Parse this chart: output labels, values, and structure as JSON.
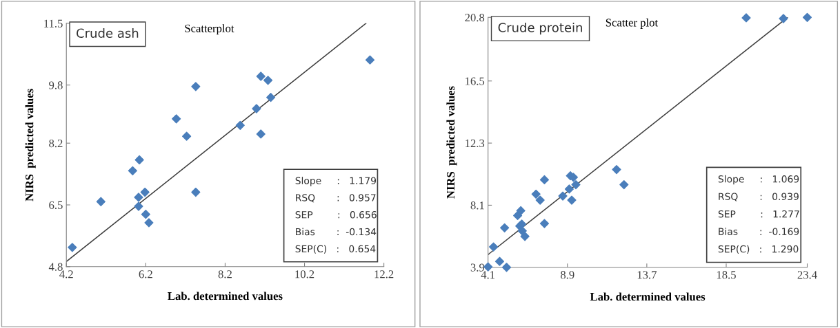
{
  "chart_data": [
    {
      "type": "scatter",
      "title": "Scatterplot",
      "xlabel": "Lab. determined values",
      "ylabel": "NIRS  predicted values",
      "annotations": [
        "Crude ash",
        "Slope     :   1.179",
        "RSQ       :   0.957",
        "SEP        :   0.656",
        "Bias       :  -0.134",
        "SEP(C)   :   0.654"
      ],
      "xlim": [
        4.2,
        12.2
      ],
      "xticks": [
        4.2,
        6.2,
        8.2,
        10.2,
        12.2
      ],
      "ylim": [
        4.8,
        11.5
      ],
      "yticks": [
        4.8,
        6.5,
        8.2,
        9.8,
        11.5
      ],
      "grid": false,
      "series": [
        {
          "marker": "diamond",
          "color": "#4a7ebb",
          "x": [
            4.35,
            5.07,
            5.87,
            6.04,
            6.02,
            6.18,
            6.02,
            6.2,
            6.28,
            6.97,
            7.23,
            7.46,
            7.46,
            8.58,
            8.99,
            9.1,
            9.1,
            9.28,
            9.35,
            11.85
          ],
          "values": [
            5.33,
            6.59,
            7.44,
            7.74,
            6.71,
            6.85,
            6.46,
            6.24,
            6.01,
            8.87,
            8.39,
            9.76,
            6.85,
            8.69,
            9.15,
            8.45,
            10.04,
            9.93,
            9.46,
            10.49
          ]
        },
        {
          "type": "line",
          "color": "#404040",
          "x": [
            4.2,
            11.75
          ],
          "values": [
            4.94,
            11.5
          ]
        }
      ]
    },
    {
      "type": "scatter",
      "title": "Scatter plot",
      "xlabel": "Lab. determined values",
      "ylabel": "NIRS  predicted values",
      "annotations": [
        "Crude protein",
        "Slope     :   1.069",
        "RSQ       :   0.939",
        "SEP        :   1.277",
        "Bias       :  -0.169",
        "SEP(C)   :   1.290"
      ],
      "xlim": [
        4.1,
        23.4
      ],
      "xticks": [
        4.1,
        8.9,
        13.7,
        18.5,
        23.4
      ],
      "ylim": [
        3.9,
        20.8
      ],
      "yticks": [
        3.9,
        8.1,
        12.3,
        16.5,
        20.8
      ],
      "grid": false,
      "series": [
        {
          "marker": "diamond",
          "color": "#4a7ebb",
          "x": [
            4.1,
            4.43,
            4.8,
            5.22,
            5.1,
            5.89,
            6.08,
            6.02,
            6.14,
            6.17,
            6.33,
            7.0,
            7.25,
            7.51,
            7.51,
            8.62,
            9.01,
            9.16,
            9.08,
            9.26,
            9.41,
            11.87,
            12.32,
            19.71,
            21.96,
            23.4
          ],
          "values": [
            3.93,
            5.28,
            4.3,
            3.9,
            6.57,
            7.4,
            7.73,
            6.69,
            6.82,
            6.36,
            5.99,
            8.85,
            8.44,
            9.82,
            6.86,
            8.72,
            9.19,
            8.44,
            10.09,
            9.99,
            9.49,
            10.51,
            9.49,
            20.77,
            20.72,
            20.8
          ]
        },
        {
          "type": "line",
          "color": "#404040",
          "x": [
            4.1,
            22.21
          ],
          "values": [
            4.76,
            20.8
          ]
        }
      ]
    }
  ]
}
